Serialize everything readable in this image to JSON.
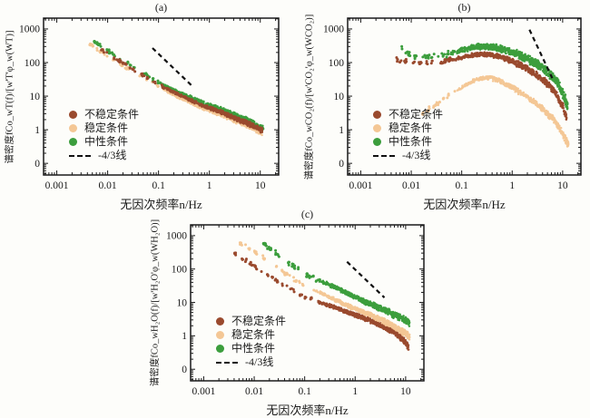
{
  "figure": {
    "background": "#fdfdfa",
    "xlabel": "无因次频率n/Hz",
    "legend_labels": [
      "不稳定条件",
      "稳定条件",
      "中性条件",
      "-4/3线"
    ]
  },
  "colors": {
    "unstable": "#9a4a2e",
    "stable": "#f4c795",
    "neutral": "#3c9e3d",
    "dash_line": "#111111",
    "frame": "#1a1a1a"
  },
  "chart_data": [
    {
      "type": "scatter",
      "id": "a",
      "title": "(a)",
      "xlabel": "无因次频率n/Hz",
      "ylabel": "谱密度fCo_wT(f)/[w'T'φ_w(WT)]",
      "x_scale": "log",
      "y_scale": "log",
      "xlim": [
        0.00055,
        23
      ],
      "ylim": [
        0.045,
        2100
      ],
      "x_ticks": [
        {
          "v": 0.001,
          "label": "0.001"
        },
        {
          "v": 0.01,
          "label": "0.01"
        },
        {
          "v": 0.1,
          "label": "0.1"
        },
        {
          "v": 1,
          "label": "1"
        },
        {
          "v": 10,
          "label": "10"
        }
      ],
      "y_ticks": [
        {
          "v": 1000,
          "label": "1000"
        },
        {
          "v": 100,
          "label": "100"
        },
        {
          "v": 10,
          "label": "10"
        },
        {
          "v": 1,
          "label": "1"
        },
        {
          "v": 0.1,
          "label": "0"
        }
      ],
      "dash_line": {
        "label": "-4/3线",
        "x1": 0.076,
        "y1": 270,
        "x2": 0.46,
        "y2": 20
      },
      "legend": [
        {
          "label": "不稳定条件",
          "type": "dot",
          "color": "#9a4a2e"
        },
        {
          "label": "稳定条件",
          "type": "dot",
          "color": "#f4c795"
        },
        {
          "label": "中性条件",
          "type": "dot",
          "color": "#3c9e3d"
        },
        {
          "label": "-4/3线",
          "type": "dash",
          "color": "#111111"
        }
      ],
      "series": [
        {
          "name": "稳定条件",
          "color": "#f4c795",
          "seed": 11,
          "x_dense": 0.12,
          "n_sparse": 26,
          "n_dense": 600,
          "spread_lo": 0.045,
          "spread_hi": 0.1,
          "anchors": [
            [
              0.0045,
              360
            ],
            [
              0.008,
              200
            ],
            [
              0.015,
              110
            ],
            [
              0.03,
              55
            ],
            [
              0.06,
              30
            ],
            [
              0.1,
              19
            ],
            [
              0.2,
              11
            ],
            [
              0.4,
              6.8
            ],
            [
              0.8,
              4.3
            ],
            [
              1.5,
              3.1
            ],
            [
              3,
              2.0
            ],
            [
              6,
              1.3
            ],
            [
              11,
              0.8
            ]
          ]
        },
        {
          "name": "中性条件",
          "color": "#3c9e3d",
          "seed": 12,
          "x_dense": 0.12,
          "n_sparse": 26,
          "n_dense": 620,
          "spread_lo": 0.045,
          "spread_hi": 0.1,
          "anchors": [
            [
              0.0045,
              500
            ],
            [
              0.008,
              280
            ],
            [
              0.015,
              155
            ],
            [
              0.03,
              78
            ],
            [
              0.06,
              42
            ],
            [
              0.1,
              26
            ],
            [
              0.2,
              15
            ],
            [
              0.4,
              9.5
            ],
            [
              0.8,
              6
            ],
            [
              1.5,
              4.3
            ],
            [
              3,
              2.8
            ],
            [
              6,
              1.8
            ],
            [
              11.5,
              1.05
            ]
          ]
        },
        {
          "name": "不稳定条件",
          "color": "#9a4a2e",
          "seed": 13,
          "x_dense": 0.12,
          "n_sparse": 26,
          "n_dense": 600,
          "spread_lo": 0.04,
          "spread_hi": 0.09,
          "anchors": [
            [
              0.0045,
              420
            ],
            [
              0.008,
              230
            ],
            [
              0.015,
              130
            ],
            [
              0.03,
              65
            ],
            [
              0.06,
              35
            ],
            [
              0.1,
              22
            ],
            [
              0.2,
              13
            ],
            [
              0.4,
              8
            ],
            [
              0.8,
              5
            ],
            [
              1.5,
              3.6
            ],
            [
              3,
              2.3
            ],
            [
              6,
              1.5
            ],
            [
              11,
              0.95
            ]
          ]
        }
      ]
    },
    {
      "type": "scatter",
      "id": "b",
      "title": "(b)",
      "xlabel": "无因次频率n/Hz",
      "ylabel": "谱密度fCo_wCO₂(f)/[w'CO₂'φ_w(WCO₂)]",
      "x_scale": "log",
      "y_scale": "log",
      "xlim": [
        0.00055,
        23
      ],
      "ylim": [
        0.045,
        2100
      ],
      "x_ticks": [
        {
          "v": 0.001,
          "label": "0.001"
        },
        {
          "v": 0.01,
          "label": "0.01"
        },
        {
          "v": 0.1,
          "label": "0.1"
        },
        {
          "v": 1,
          "label": "1"
        },
        {
          "v": 10,
          "label": "10"
        }
      ],
      "y_ticks": [
        {
          "v": 1000,
          "label": "1000"
        },
        {
          "v": 100,
          "label": "100"
        },
        {
          "v": 10,
          "label": "10"
        },
        {
          "v": 1,
          "label": "1"
        },
        {
          "v": 0.1,
          "label": "0"
        }
      ],
      "dash_line": {
        "label": "-4/3线",
        "x1": 2.2,
        "y1": 950,
        "x2": 6.3,
        "y2": 33
      },
      "legend": [
        {
          "label": "不稳定条件",
          "type": "dot",
          "color": "#9a4a2e"
        },
        {
          "label": "稳定条件",
          "type": "dot",
          "color": "#f4c795"
        },
        {
          "label": "中性条件",
          "type": "dot",
          "color": "#3c9e3d"
        },
        {
          "label": "-4/3线",
          "type": "dash",
          "color": "#111111"
        }
      ],
      "series": [
        {
          "name": "稳定条件",
          "color": "#f4c795",
          "seed": 21,
          "x_dense": 0.08,
          "n_sparse": 18,
          "n_dense": 560,
          "spread_lo": 0.05,
          "spread_hi": 0.12,
          "anchors": [
            [
              0.015,
              2.8
            ],
            [
              0.03,
              5.5
            ],
            [
              0.06,
              11
            ],
            [
              0.1,
              18
            ],
            [
              0.2,
              32
            ],
            [
              0.35,
              36
            ],
            [
              0.6,
              28
            ],
            [
              1,
              18
            ],
            [
              2,
              9.5
            ],
            [
              4,
              4.2
            ],
            [
              7,
              1.8
            ],
            [
              10,
              0.8
            ],
            [
              13,
              0.35
            ]
          ]
        },
        {
          "name": "不稳定条件",
          "color": "#9a4a2e",
          "seed": 22,
          "x_dense": 0.06,
          "n_sparse": 22,
          "n_dense": 700,
          "spread_lo": 0.06,
          "spread_hi": 0.13,
          "anchors": [
            [
              0.005,
              130
            ],
            [
              0.01,
              100
            ],
            [
              0.02,
              95
            ],
            [
              0.04,
              105
            ],
            [
              0.08,
              130
            ],
            [
              0.15,
              165
            ],
            [
              0.3,
              180
            ],
            [
              0.6,
              150
            ],
            [
              1,
              110
            ],
            [
              2,
              65
            ],
            [
              4,
              33
            ],
            [
              7,
              14
            ],
            [
              10,
              5
            ],
            [
              12,
              2.2
            ]
          ]
        },
        {
          "name": "中性条件",
          "color": "#3c9e3d",
          "seed": 23,
          "x_dense": 0.06,
          "n_sparse": 20,
          "n_dense": 860,
          "spread_lo": 0.08,
          "spread_hi": 0.17,
          "anchors": [
            [
              0.005,
              420
            ],
            [
              0.01,
              150
            ],
            [
              0.02,
              140
            ],
            [
              0.05,
              170
            ],
            [
              0.1,
              240
            ],
            [
              0.2,
              300
            ],
            [
              0.4,
              290
            ],
            [
              0.8,
              230
            ],
            [
              1.5,
              160
            ],
            [
              3,
              95
            ],
            [
              5,
              55
            ],
            [
              8,
              25
            ],
            [
              11,
              9
            ],
            [
              12.5,
              4.5
            ]
          ]
        }
      ]
    },
    {
      "type": "scatter",
      "id": "c",
      "title": "(c)",
      "xlabel": "无因次频率n/Hz",
      "ylabel": "谱密度fCo_wH₂O(f)/[w'H₂O'φ_w(WH₂O)]",
      "x_scale": "log",
      "y_scale": "log",
      "xlim": [
        0.00055,
        23
      ],
      "ylim": [
        0.045,
        2100
      ],
      "x_ticks": [
        {
          "v": 0.001,
          "label": "0.001"
        },
        {
          "v": 0.01,
          "label": "0.01"
        },
        {
          "v": 0.1,
          "label": "0.1"
        },
        {
          "v": 1,
          "label": "1"
        },
        {
          "v": 10,
          "label": "10"
        }
      ],
      "y_ticks": [
        {
          "v": 1000,
          "label": "1000"
        },
        {
          "v": 100,
          "label": "100"
        },
        {
          "v": 10,
          "label": "10"
        },
        {
          "v": 1,
          "label": "1"
        },
        {
          "v": 0.1,
          "label": "0"
        }
      ],
      "dash_line": {
        "label": "-4/3线",
        "x1": 0.69,
        "y1": 165,
        "x2": 3.8,
        "y2": 14
      },
      "legend": [
        {
          "label": "不稳定条件",
          "type": "dot",
          "color": "#9a4a2e"
        },
        {
          "label": "稳定条件",
          "type": "dot",
          "color": "#f4c795"
        },
        {
          "label": "中性条件",
          "type": "dot",
          "color": "#3c9e3d"
        },
        {
          "label": "-4/3线",
          "type": "dash",
          "color": "#111111"
        }
      ],
      "series": [
        {
          "name": "不稳定条件",
          "color": "#9a4a2e",
          "seed": 31,
          "x_dense": 0.18,
          "n_sparse": 30,
          "n_dense": 620,
          "spread_lo": 0.05,
          "spread_hi": 0.11,
          "anchors": [
            [
              0.004,
              300
            ],
            [
              0.008,
              150
            ],
            [
              0.015,
              80
            ],
            [
              0.03,
              42
            ],
            [
              0.06,
              23
            ],
            [
              0.1,
              15
            ],
            [
              0.2,
              10
            ],
            [
              0.4,
              7
            ],
            [
              0.8,
              4.8
            ],
            [
              1.5,
              3.4
            ],
            [
              3,
              2.2
            ],
            [
              6,
              1.3
            ],
            [
              10,
              0.65
            ],
            [
              11.5,
              0.45
            ]
          ]
        },
        {
          "name": "稳定条件",
          "color": "#f4c795",
          "seed": 32,
          "x_dense": 0.18,
          "n_sparse": 30,
          "n_dense": 620,
          "spread_lo": 0.05,
          "spread_hi": 0.11,
          "anchors": [
            [
              0.005,
              650
            ],
            [
              0.01,
              330
            ],
            [
              0.02,
              160
            ],
            [
              0.04,
              75
            ],
            [
              0.08,
              38
            ],
            [
              0.15,
              24
            ],
            [
              0.3,
              15
            ],
            [
              0.6,
              9
            ],
            [
              1.2,
              5.8
            ],
            [
              2.5,
              3.6
            ],
            [
              5,
              2.2
            ],
            [
              9,
              1.3
            ],
            [
              12,
              0.95
            ]
          ]
        },
        {
          "name": "中性条件",
          "color": "#3c9e3d",
          "seed": 33,
          "x_dense": 0.18,
          "n_sparse": 30,
          "n_dense": 660,
          "spread_lo": 0.06,
          "spread_hi": 0.12,
          "anchors": [
            [
              0.013,
              700
            ],
            [
              0.025,
              320
            ],
            [
              0.05,
              150
            ],
            [
              0.1,
              72
            ],
            [
              0.2,
              45
            ],
            [
              0.4,
              28
            ],
            [
              0.8,
              17
            ],
            [
              1.5,
              11
            ],
            [
              3,
              7
            ],
            [
              6,
              4.2
            ],
            [
              10,
              2.9
            ],
            [
              12,
              2.4
            ]
          ]
        }
      ]
    }
  ]
}
